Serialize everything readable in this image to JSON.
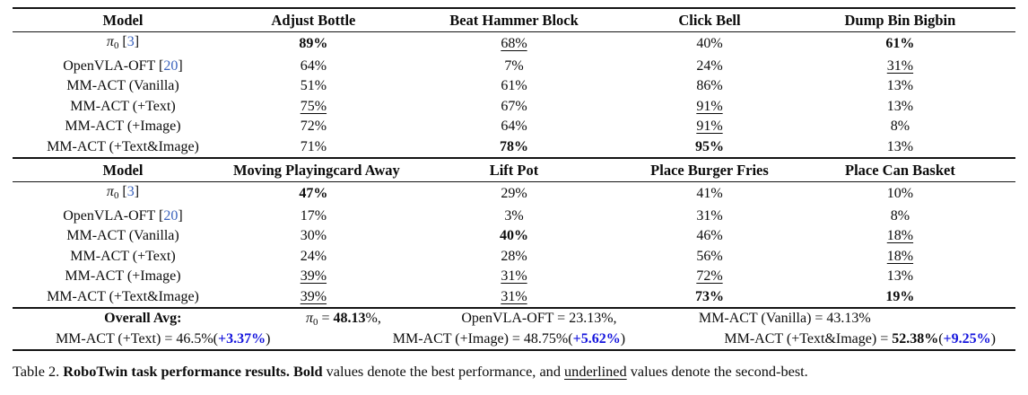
{
  "colors": {
    "cite_blue": "#3b63bd",
    "delta_blue": "#1515dd",
    "rule_black": "#141414"
  },
  "table": {
    "blocks": [
      {
        "header": [
          "Model",
          "Adjust Bottle",
          "Beat Hammer Block",
          "Click Bell",
          "Dump Bin Bigbin"
        ],
        "rows": [
          {
            "model": {
              "main": "π",
              "sub": "0",
              "italic": true,
              "cite": "3",
              "bold": false
            },
            "cells": [
              {
                "v": "89%",
                "s": "b"
              },
              {
                "v": "68%",
                "s": "u"
              },
              {
                "v": "40%",
                "s": ""
              },
              {
                "v": "61%",
                "s": "b"
              }
            ]
          },
          {
            "model": {
              "main": "OpenVLA-OFT",
              "sub": "",
              "italic": false,
              "cite": "20",
              "bold": false
            },
            "cells": [
              {
                "v": "64%",
                "s": ""
              },
              {
                "v": "7%",
                "s": ""
              },
              {
                "v": "24%",
                "s": ""
              },
              {
                "v": "31%",
                "s": "u"
              }
            ]
          },
          {
            "model": {
              "main": "MM-ACT (Vanilla)",
              "sub": "",
              "italic": false,
              "cite": "",
              "bold": true
            },
            "cells": [
              {
                "v": "51%",
                "s": ""
              },
              {
                "v": "61%",
                "s": ""
              },
              {
                "v": "86%",
                "s": ""
              },
              {
                "v": "13%",
                "s": ""
              }
            ]
          },
          {
            "model": {
              "main": "MM-ACT (+Text)",
              "sub": "",
              "italic": false,
              "cite": "",
              "bold": true
            },
            "cells": [
              {
                "v": "75%",
                "s": "u"
              },
              {
                "v": "67%",
                "s": ""
              },
              {
                "v": "91%",
                "s": "u"
              },
              {
                "v": "13%",
                "s": ""
              }
            ]
          },
          {
            "model": {
              "main": "MM-ACT (+Image)",
              "sub": "",
              "italic": false,
              "cite": "",
              "bold": true
            },
            "cells": [
              {
                "v": "72%",
                "s": ""
              },
              {
                "v": "64%",
                "s": ""
              },
              {
                "v": "91%",
                "s": "u"
              },
              {
                "v": "8%",
                "s": ""
              }
            ]
          },
          {
            "model": {
              "main": "MM-ACT (+Text&Image)",
              "sub": "",
              "italic": false,
              "cite": "",
              "bold": true
            },
            "cells": [
              {
                "v": "71%",
                "s": ""
              },
              {
                "v": "78%",
                "s": "b"
              },
              {
                "v": "95%",
                "s": "b"
              },
              {
                "v": "13%",
                "s": ""
              }
            ]
          }
        ]
      },
      {
        "header": [
          "Model",
          "Moving Playingcard Away",
          "Lift Pot",
          "Place Burger Fries",
          "Place Can Basket"
        ],
        "rows": [
          {
            "model": {
              "main": "π",
              "sub": "0",
              "italic": true,
              "cite": "3",
              "bold": false
            },
            "cells": [
              {
                "v": "47%",
                "s": "b"
              },
              {
                "v": "29%",
                "s": ""
              },
              {
                "v": "41%",
                "s": ""
              },
              {
                "v": "10%",
                "s": ""
              }
            ]
          },
          {
            "model": {
              "main": "OpenVLA-OFT",
              "sub": "",
              "italic": false,
              "cite": "20",
              "bold": false
            },
            "cells": [
              {
                "v": "17%",
                "s": ""
              },
              {
                "v": "3%",
                "s": ""
              },
              {
                "v": "31%",
                "s": ""
              },
              {
                "v": "8%",
                "s": ""
              }
            ]
          },
          {
            "model": {
              "main": "MM-ACT (Vanilla)",
              "sub": "",
              "italic": false,
              "cite": "",
              "bold": true
            },
            "cells": [
              {
                "v": "30%",
                "s": ""
              },
              {
                "v": "40%",
                "s": "b"
              },
              {
                "v": "46%",
                "s": ""
              },
              {
                "v": "18%",
                "s": "u"
              }
            ]
          },
          {
            "model": {
              "main": "MM-ACT (+Text)",
              "sub": "",
              "italic": false,
              "cite": "",
              "bold": true
            },
            "cells": [
              {
                "v": "24%",
                "s": ""
              },
              {
                "v": "28%",
                "s": ""
              },
              {
                "v": "56%",
                "s": ""
              },
              {
                "v": "18%",
                "s": "u"
              }
            ]
          },
          {
            "model": {
              "main": "MM-ACT (+Image)",
              "sub": "",
              "italic": false,
              "cite": "",
              "bold": true
            },
            "cells": [
              {
                "v": "39%",
                "s": "u"
              },
              {
                "v": "31%",
                "s": "u"
              },
              {
                "v": "72%",
                "s": "u"
              },
              {
                "v": "13%",
                "s": ""
              }
            ]
          },
          {
            "model": {
              "main": "MM-ACT (+Text&Image)",
              "sub": "",
              "italic": false,
              "cite": "",
              "bold": true
            },
            "cells": [
              {
                "v": "39%",
                "s": "u"
              },
              {
                "v": "31%",
                "s": "u"
              },
              {
                "v": "73%",
                "s": "b"
              },
              {
                "v": "19%",
                "s": "b"
              }
            ]
          }
        ]
      }
    ],
    "footer": {
      "line1": [
        [
          {
            "t": "Overall Avg:",
            "b": true
          }
        ],
        [
          {
            "t": "π",
            "i": true
          },
          {
            "t": "0",
            "sub": true
          },
          {
            "t": " = "
          },
          {
            "t": "48.13",
            "b": true
          },
          {
            "t": "%,"
          }
        ],
        [
          {
            "t": "OpenVLA-OFT = 23.13%,"
          }
        ],
        [
          {
            "t": "MM-ACT (Vanilla) = 43.13%"
          }
        ],
        []
      ],
      "line2": [
        [
          {
            "t": "MM-ACT (+Text) = 46.5%("
          },
          {
            "t": "+3.37%",
            "b": true,
            "blue": true
          },
          {
            "t": ")"
          }
        ],
        [
          {
            "t": "MM-ACT (+Image) = 48.75%("
          },
          {
            "t": "+5.62%",
            "b": true,
            "blue": true
          },
          {
            "t": ")"
          }
        ],
        [
          {
            "t": "MM-ACT (+Text&Image) = "
          },
          {
            "t": "52.38%",
            "b": true
          },
          {
            "t": "("
          },
          {
            "t": "+9.25%",
            "b": true,
            "blue": true
          },
          {
            "t": ")"
          }
        ]
      ]
    }
  },
  "caption": {
    "segments": [
      {
        "t": "Table 2. "
      },
      {
        "t": "RoboTwin task performance results. Bold",
        "b": true
      },
      {
        "t": " values denote the best performance, and "
      },
      {
        "t": "underlined",
        "u": true
      },
      {
        "t": " values denote the second-best."
      }
    ]
  }
}
